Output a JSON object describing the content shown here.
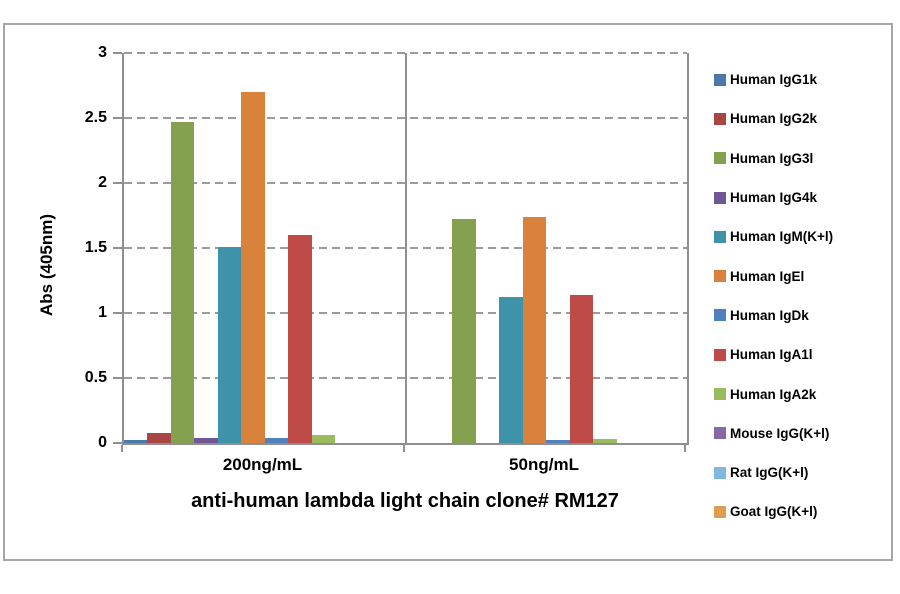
{
  "chart_data": {
    "type": "bar",
    "title": "anti-human lambda light chain clone# RM127",
    "ylabel": "Abs (405nm)",
    "categories": [
      "200ng/mL",
      "50ng/mL"
    ],
    "ylim": [
      0,
      3
    ],
    "ytick_step": 0.5,
    "ytick_labels": [
      "0",
      "0.5",
      "1",
      "1.5",
      "2",
      "2.5",
      "3"
    ],
    "grid": "horizontal-dashed",
    "legend_position": "right",
    "series": [
      {
        "name": "Human IgG1k",
        "color": "#4C79AC",
        "values": [
          0.02,
          0
        ]
      },
      {
        "name": "Human IgG2k",
        "color": "#A94643",
        "values": [
          0.08,
          0
        ]
      },
      {
        "name": "Human IgG3l",
        "color": "#83A14E",
        "values": [
          2.47,
          1.72
        ]
      },
      {
        "name": "Human IgG4k",
        "color": "#6F5694",
        "values": [
          0.04,
          0
        ]
      },
      {
        "name": "Human IgM(K+l)",
        "color": "#3E92A9",
        "values": [
          1.51,
          1.12
        ]
      },
      {
        "name": "Human IgEl",
        "color": "#D9823B",
        "values": [
          2.7,
          1.74
        ]
      },
      {
        "name": "Human IgDk",
        "color": "#4F81BD",
        "values": [
          0.04,
          0.02
        ]
      },
      {
        "name": "Human IgA1l",
        "color": "#BE4B48",
        "values": [
          1.6,
          1.14
        ]
      },
      {
        "name": "Human IgA2k",
        "color": "#9CBB5F",
        "values": [
          0.06,
          0.03
        ]
      },
      {
        "name": "Mouse IgG(K+l)",
        "color": "#8668A7",
        "values": [
          0,
          0
        ]
      },
      {
        "name": "Rat IgG(K+l)",
        "color": "#7FB8DC",
        "values": [
          0,
          0
        ]
      },
      {
        "name": "Goat IgG(K+l)",
        "color": "#E29C50",
        "values": [
          0,
          0
        ]
      }
    ],
    "colors": {
      "axis": "#8f8f8f",
      "gridline": "#9b9b9b",
      "frame_border": "#a6a6a6",
      "text": "#000000"
    }
  }
}
